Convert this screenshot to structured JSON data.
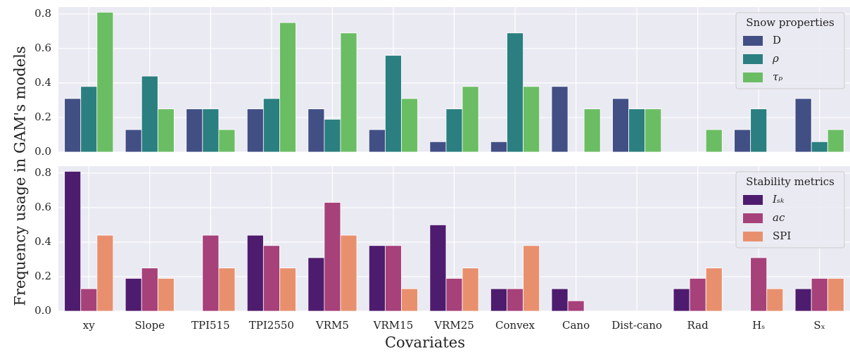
{
  "ylabel": "Frequency usage in GAM's models",
  "xlabel": "Covariates",
  "chart_data": [
    {
      "type": "bar",
      "legend_title": "Snow properties",
      "legend": "upper right",
      "grid": true,
      "ylim": [
        0,
        0.84
      ],
      "yticks": [
        0.0,
        0.2,
        0.4,
        0.6,
        0.8
      ],
      "series": [
        {
          "name": "D",
          "color": "#424f85",
          "values": [
            0.31,
            0.13,
            0.25,
            0.25,
            0.25,
            0.13,
            0.06,
            0.06,
            0.38,
            0.31,
            0,
            0.13,
            0.31
          ]
        },
        {
          "name": "ρ",
          "color": "#2b7f80",
          "values": [
            0.38,
            0.44,
            0.25,
            0.31,
            0.19,
            0.56,
            0.25,
            0.69,
            0,
            0.25,
            0,
            0.25,
            0.06
          ]
        },
        {
          "name": "τₚ",
          "color": "#6bbd64",
          "values": [
            0.81,
            0.25,
            0.13,
            0.75,
            0.69,
            0.31,
            0.38,
            0.38,
            0.25,
            0.25,
            0.13,
            0,
            0.13
          ]
        }
      ]
    },
    {
      "type": "bar",
      "legend_title": "Stability metrics",
      "legend": "upper right",
      "grid": true,
      "categories": [
        "xy",
        "Slope",
        "TPI515",
        "TPI2550",
        "VRM5",
        "VRM15",
        "VRM25",
        "Convex",
        "Cano",
        "Dist-cano",
        "Rad",
        "Hₛ",
        "Sₓ"
      ],
      "ylim": [
        0,
        0.84
      ],
      "yticks": [
        0.0,
        0.2,
        0.4,
        0.6,
        0.8
      ],
      "series": [
        {
          "name": "Iₛₖ",
          "color": "#4e1c6e",
          "values": [
            0.81,
            0.19,
            0,
            0.44,
            0.31,
            0.38,
            0.5,
            0.13,
            0.13,
            0,
            0.13,
            0,
            0.13
          ]
        },
        {
          "name": "ac",
          "color": "#a6417a",
          "values": [
            0.13,
            0.25,
            0.44,
            0.38,
            0.63,
            0.38,
            0.19,
            0.13,
            0.06,
            0,
            0.19,
            0.31,
            0.19
          ]
        },
        {
          "name": "SPI",
          "color": "#e8906e",
          "values": [
            0.44,
            0.19,
            0.25,
            0.25,
            0.44,
            0.13,
            0.25,
            0.38,
            0,
            0,
            0.25,
            0.13,
            0.19
          ]
        }
      ]
    }
  ]
}
